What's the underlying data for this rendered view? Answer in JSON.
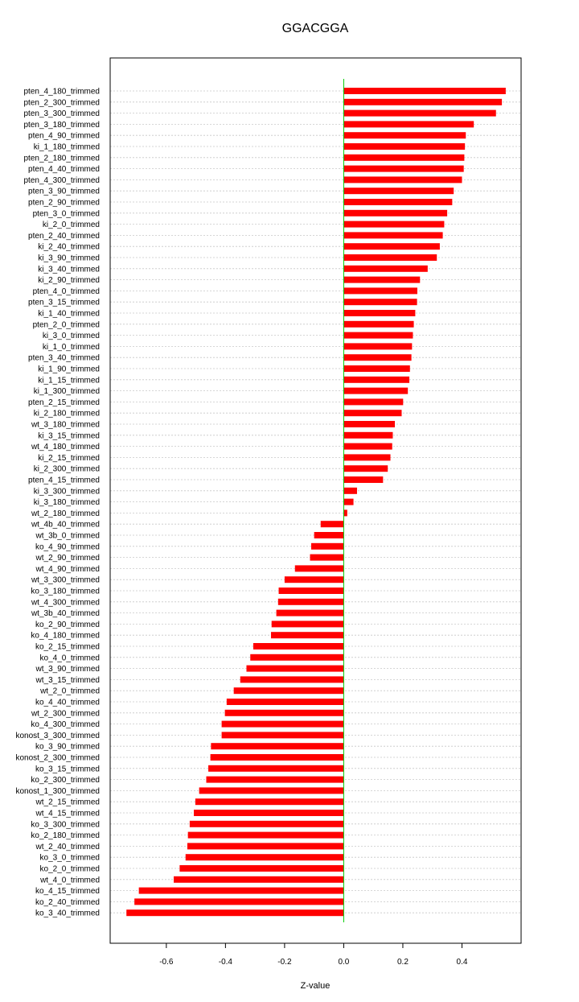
{
  "chart_data": {
    "type": "bar",
    "orientation": "horizontal",
    "title": "GGACGGA",
    "xlabel": "Z-value",
    "ylabel": "",
    "xlim": [
      -0.79,
      0.6
    ],
    "xticks": [
      "-0.6",
      "-0.4",
      "-0.2",
      "0.0",
      "0.2",
      "0.4"
    ],
    "xtick_values": [
      -0.6,
      -0.4,
      -0.2,
      0.0,
      0.2,
      0.4
    ],
    "grid": "horizontal dotted",
    "bar_color": "#ff0000",
    "zero_line_color": "#00cc00",
    "categories": [
      "pten_4_180_trimmed",
      "pten_2_300_trimmed",
      "pten_3_300_trimmed",
      "pten_3_180_trimmed",
      "pten_4_90_trimmed",
      "ki_1_180_trimmed",
      "pten_2_180_trimmed",
      "pten_4_40_trimmed",
      "pten_4_300_trimmed",
      "pten_3_90_trimmed",
      "pten_2_90_trimmed",
      "pten_3_0_trimmed",
      "ki_2_0_trimmed",
      "pten_2_40_trimmed",
      "ki_2_40_trimmed",
      "ki_3_90_trimmed",
      "ki_3_40_trimmed",
      "ki_2_90_trimmed",
      "pten_4_0_trimmed",
      "pten_3_15_trimmed",
      "ki_1_40_trimmed",
      "pten_2_0_trimmed",
      "ki_3_0_trimmed",
      "ki_1_0_trimmed",
      "pten_3_40_trimmed",
      "ki_1_90_trimmed",
      "ki_1_15_trimmed",
      "ki_1_300_trimmed",
      "pten_2_15_trimmed",
      "ki_2_180_trimmed",
      "wt_3_180_trimmed",
      "ki_3_15_trimmed",
      "wt_4_180_trimmed",
      "ki_2_15_trimmed",
      "ki_2_300_trimmed",
      "pten_4_15_trimmed",
      "ki_3_300_trimmed",
      "ki_3_180_trimmed",
      "wt_2_180_trimmed",
      "wt_4b_40_trimmed",
      "wt_3b_0_trimmed",
      "ko_4_90_trimmed",
      "wt_2_90_trimmed",
      "wt_4_90_trimmed",
      "wt_3_300_trimmed",
      "ko_3_180_trimmed",
      "wt_4_300_trimmed",
      "wt_3b_40_trimmed",
      "ko_2_90_trimmed",
      "ko_4_180_trimmed",
      "ko_2_15_trimmed",
      "ko_4_0_trimmed",
      "wt_3_90_trimmed",
      "wt_3_15_trimmed",
      "wt_2_0_trimmed",
      "ko_4_40_trimmed",
      "wt_2_300_trimmed",
      "ko_4_300_trimmed",
      "konost_3_300_trimmed",
      "ko_3_90_trimmed",
      "konost_2_300_trimmed",
      "ko_3_15_trimmed",
      "ko_2_300_trimmed",
      "konost_1_300_trimmed",
      "wt_2_15_trimmed",
      "wt_4_15_trimmed",
      "ko_3_300_trimmed",
      "ko_2_180_trimmed",
      "wt_2_40_trimmed",
      "ko_3_0_trimmed",
      "ko_2_0_trimmed",
      "wt_4_0_trimmed",
      "ko_4_15_trimmed",
      "ko_2_40_trimmed",
      "ko_3_40_trimmed"
    ],
    "values": [
      0.548,
      0.535,
      0.515,
      0.44,
      0.413,
      0.41,
      0.408,
      0.406,
      0.4,
      0.372,
      0.367,
      0.35,
      0.34,
      0.335,
      0.325,
      0.315,
      0.284,
      0.258,
      0.249,
      0.248,
      0.242,
      0.237,
      0.234,
      0.231,
      0.229,
      0.224,
      0.222,
      0.217,
      0.201,
      0.196,
      0.173,
      0.166,
      0.164,
      0.158,
      0.149,
      0.133,
      0.045,
      0.033,
      0.012,
      -0.078,
      -0.1,
      -0.11,
      -0.114,
      -0.165,
      -0.2,
      -0.22,
      -0.222,
      -0.228,
      -0.244,
      -0.246,
      -0.306,
      -0.316,
      -0.329,
      -0.35,
      -0.372,
      -0.396,
      -0.402,
      -0.413,
      -0.413,
      -0.449,
      -0.451,
      -0.458,
      -0.465,
      -0.489,
      -0.502,
      -0.507,
      -0.521,
      -0.527,
      -0.529,
      -0.535,
      -0.555,
      -0.575,
      -0.693,
      -0.708,
      -0.735
    ]
  }
}
